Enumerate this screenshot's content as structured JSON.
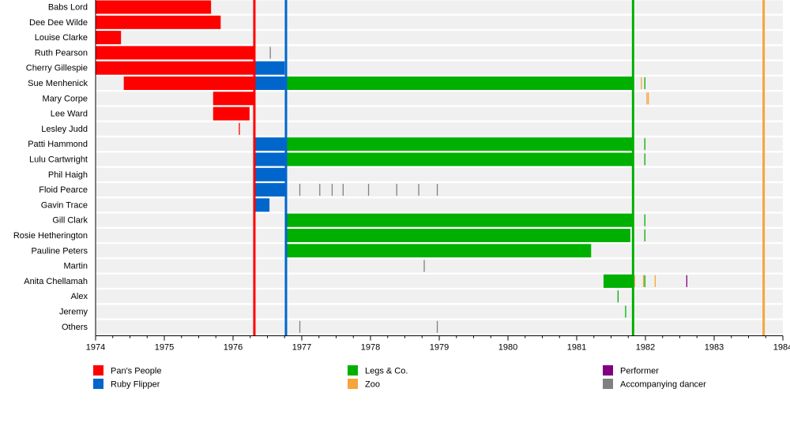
{
  "chart_data": {
    "type": "timeline",
    "xlim": [
      1974,
      1984
    ],
    "x_ticks": [
      "1974",
      "1975",
      "1976",
      "1977",
      "1978",
      "1979",
      "1980",
      "1981",
      "1982",
      "1983",
      "1984"
    ],
    "colors": {
      "Pan's People": "#ff0000",
      "Ruby Flipper": "#0066cc",
      "Legs & Co.": "#00b000",
      "Zoo": "#f5a53a",
      "Performer": "#800080",
      "Accompanying dancer": "#808080"
    },
    "legend": [
      {
        "name": "Pan's People",
        "color": "#ff0000"
      },
      {
        "name": "Ruby Flipper",
        "color": "#0066cc"
      },
      {
        "name": "Legs & Co.",
        "color": "#00b000"
      },
      {
        "name": "Zoo",
        "color": "#f5a53a"
      },
      {
        "name": "Performer",
        "color": "#800080"
      },
      {
        "name": "Accompanying dancer",
        "color": "#808080"
      }
    ],
    "legend_placement": "bottom",
    "group_lines": [
      {
        "group": "Pan's People",
        "x": 1976.31
      },
      {
        "group": "Ruby Flipper",
        "x": 1976.77
      },
      {
        "group": "Legs & Co.",
        "x": 1981.82
      },
      {
        "group": "Zoo",
        "x": 1983.72
      }
    ],
    "rows": [
      {
        "name": "Babs Lord",
        "bars": [
          {
            "g": "Pan's People",
            "from": 1974,
            "to": 1975.68
          }
        ],
        "marks": []
      },
      {
        "name": "Dee Dee Wilde",
        "bars": [
          {
            "g": "Pan's People",
            "from": 1974,
            "to": 1975.82
          }
        ],
        "marks": []
      },
      {
        "name": "Louise Clarke",
        "bars": [
          {
            "g": "Pan's People",
            "from": 1974,
            "to": 1974.37
          }
        ],
        "marks": []
      },
      {
        "name": "Ruth Pearson",
        "bars": [
          {
            "g": "Pan's People",
            "from": 1974,
            "to": 1976.31
          }
        ],
        "marks": [
          {
            "g": "Accompanying dancer",
            "x": 1976.54
          }
        ]
      },
      {
        "name": "Cherry Gillespie",
        "bars": [
          {
            "g": "Pan's People",
            "from": 1974,
            "to": 1976.31
          },
          {
            "g": "Ruby Flipper",
            "from": 1976.31,
            "to": 1976.75
          }
        ],
        "marks": []
      },
      {
        "name": "Sue Menhenick",
        "bars": [
          {
            "g": "Pan's People",
            "from": 1974.41,
            "to": 1976.31
          },
          {
            "g": "Ruby Flipper",
            "from": 1976.31,
            "to": 1976.77
          },
          {
            "g": "Legs & Co.",
            "from": 1976.77,
            "to": 1981.82
          }
        ],
        "marks": [
          {
            "g": "Zoo",
            "x": 1981.94
          },
          {
            "g": "Legs & Co.",
            "x": 1981.99
          }
        ]
      },
      {
        "name": "Mary Corpe",
        "bars": [
          {
            "g": "Pan's People",
            "from": 1975.71,
            "to": 1976.31
          }
        ],
        "marks": [
          {
            "g": "Zoo",
            "x": 1982.02
          },
          {
            "g": "Zoo",
            "x": 1982.04
          }
        ]
      },
      {
        "name": "Lee Ward",
        "bars": [
          {
            "g": "Pan's People",
            "from": 1975.71,
            "to": 1976.24
          }
        ],
        "marks": []
      },
      {
        "name": "Lesley Judd",
        "bars": [],
        "marks": [
          {
            "g": "Pan's People",
            "x": 1976.09
          }
        ]
      },
      {
        "name": "Patti Hammond",
        "bars": [
          {
            "g": "Ruby Flipper",
            "from": 1976.31,
            "to": 1976.77
          },
          {
            "g": "Legs & Co.",
            "from": 1976.77,
            "to": 1981.82
          }
        ],
        "marks": [
          {
            "g": "Legs & Co.",
            "x": 1981.99
          }
        ]
      },
      {
        "name": "Lulu Cartwright",
        "bars": [
          {
            "g": "Ruby Flipper",
            "from": 1976.31,
            "to": 1976.77
          },
          {
            "g": "Legs & Co.",
            "from": 1976.77,
            "to": 1981.82
          }
        ],
        "marks": [
          {
            "g": "Legs & Co.",
            "x": 1981.99
          }
        ]
      },
      {
        "name": "Phil Haigh",
        "bars": [
          {
            "g": "Ruby Flipper",
            "from": 1976.31,
            "to": 1976.77
          }
        ],
        "marks": []
      },
      {
        "name": "Floid Pearce",
        "bars": [
          {
            "g": "Ruby Flipper",
            "from": 1976.31,
            "to": 1976.77
          }
        ],
        "marks": [
          {
            "g": "Accompanying dancer",
            "x": 1976.97
          },
          {
            "g": "Accompanying dancer",
            "x": 1977.26
          },
          {
            "g": "Accompanying dancer",
            "x": 1977.44
          },
          {
            "g": "Accompanying dancer",
            "x": 1977.6
          },
          {
            "g": "Accompanying dancer",
            "x": 1977.97
          },
          {
            "g": "Accompanying dancer",
            "x": 1978.38
          },
          {
            "g": "Accompanying dancer",
            "x": 1978.7
          },
          {
            "g": "Accompanying dancer",
            "x": 1978.97
          }
        ]
      },
      {
        "name": "Gavin Trace",
        "bars": [
          {
            "g": "Ruby Flipper",
            "from": 1976.31,
            "to": 1976.53
          }
        ],
        "marks": []
      },
      {
        "name": "Gill Clark",
        "bars": [
          {
            "g": "Legs & Co.",
            "from": 1976.77,
            "to": 1981.82
          }
        ],
        "marks": [
          {
            "g": "Legs & Co.",
            "x": 1981.99
          }
        ]
      },
      {
        "name": "Rosie Hetherington",
        "bars": [
          {
            "g": "Legs & Co.",
            "from": 1976.77,
            "to": 1981.78
          }
        ],
        "marks": [
          {
            "g": "Legs & Co.",
            "x": 1981.99
          }
        ]
      },
      {
        "name": "Pauline Peters",
        "bars": [
          {
            "g": "Legs & Co.",
            "from": 1976.77,
            "to": 1981.21
          }
        ],
        "marks": []
      },
      {
        "name": "Martin",
        "bars": [],
        "marks": [
          {
            "g": "Accompanying dancer",
            "x": 1978.78
          }
        ]
      },
      {
        "name": "Anita Chellamah",
        "bars": [
          {
            "g": "Legs & Co.",
            "from": 1981.39,
            "to": 1981.82
          }
        ],
        "marks": [
          {
            "g": "Zoo",
            "x": 1981.84
          },
          {
            "g": "Zoo",
            "x": 1981.97
          },
          {
            "g": "Legs & Co.",
            "x": 1981.99
          },
          {
            "g": "Zoo",
            "x": 1982.14
          },
          {
            "g": "Performer",
            "x": 1982.6
          }
        ]
      },
      {
        "name": "Alex",
        "bars": [],
        "marks": [
          {
            "g": "Legs & Co.",
            "x": 1981.6
          }
        ]
      },
      {
        "name": "Jeremy",
        "bars": [],
        "marks": [
          {
            "g": "Legs & Co.",
            "x": 1981.71
          }
        ]
      },
      {
        "name": "Others",
        "bars": [],
        "marks": [
          {
            "g": "Accompanying dancer",
            "x": 1976.97
          },
          {
            "g": "Accompanying dancer",
            "x": 1978.97
          }
        ]
      }
    ]
  }
}
